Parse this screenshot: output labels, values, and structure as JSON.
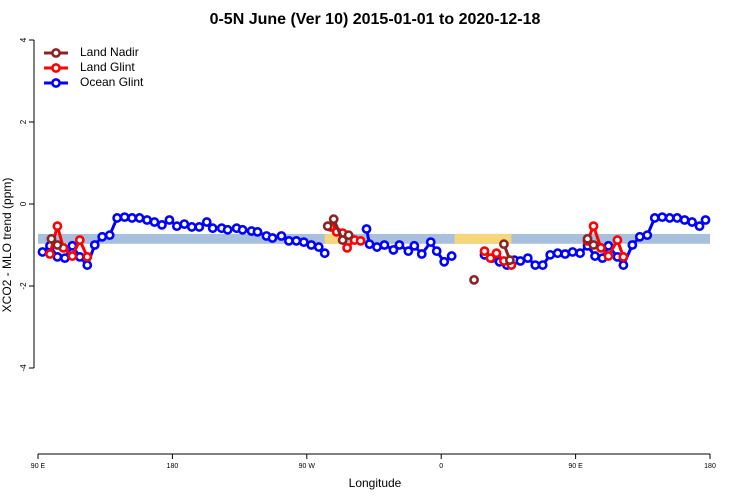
{
  "chart_data": {
    "type": "line",
    "title": "0-5N June (Ver 10)   2015-01-01 to 2020-12-18",
    "xlabel": "Longitude",
    "ylabel": "XCO2 - MLO trend (ppm)",
    "xlim": [
      90,
      540
    ],
    "ylim": [
      -6,
      4
    ],
    "xticks": [
      {
        "value": 90,
        "label": "90 E"
      },
      {
        "value": 180,
        "label": "180"
      },
      {
        "value": 270,
        "label": "90 W"
      },
      {
        "value": 360,
        "label": "0"
      },
      {
        "value": 450,
        "label": "90 E"
      },
      {
        "value": 540,
        "label": "180"
      }
    ],
    "yticks": [
      -4,
      -2,
      0,
      2,
      4
    ],
    "legend": "top-left",
    "bands": [
      {
        "x": [
          90,
          540
        ],
        "y": [
          -0.97,
          -0.73
        ],
        "color": "#a8bfdd"
      },
      {
        "x": [
          282,
          295
        ],
        "y": [
          -0.97,
          -0.73
        ],
        "color": "#f5d67a"
      },
      {
        "x": [
          369,
          407
        ],
        "y": [
          -0.97,
          -0.73
        ],
        "color": "#f5d67a"
      }
    ],
    "series": [
      {
        "name": "Land Nadir",
        "color": "#8b2323",
        "x": [
          99,
          103,
          200,
          284,
          288,
          294,
          298,
          340,
          382,
          390,
          402,
          406,
          430,
          458,
          462
        ],
        "values": [
          -0.85,
          -1.0,
          null,
          -0.54,
          -0.37,
          -0.88,
          -0.76,
          null,
          -1.85,
          null,
          -0.98,
          -1.37,
          null,
          -0.85,
          -1.0
        ]
      },
      {
        "name": "Land Glint",
        "color": "#ff0000",
        "x": [
          98,
          103,
          107,
          113,
          118,
          123,
          200,
          286,
          290,
          294,
          297,
          302,
          306,
          350,
          389,
          393,
          397,
          402,
          407,
          430,
          458,
          462,
          467,
          472,
          478,
          482
        ],
        "values": [
          -1.22,
          -0.54,
          -1.07,
          -1.27,
          -0.88,
          -1.29,
          null,
          -0.56,
          -0.68,
          -0.71,
          -1.07,
          -0.88,
          -0.9,
          null,
          -1.15,
          -1.32,
          -1.2,
          -1.39,
          -1.49,
          null,
          -0.9,
          -0.54,
          -1.07,
          -1.27,
          -0.88,
          -1.29
        ]
      },
      {
        "name": "Ocean Glint",
        "color": "#0000ff",
        "x": [
          93,
          98,
          103,
          108,
          113,
          118,
          123,
          128,
          133,
          138,
          143,
          148,
          153,
          158,
          163,
          168,
          173,
          178,
          183,
          188,
          193,
          198,
          203,
          207,
          213,
          217,
          223,
          227,
          233,
          237,
          243,
          247,
          253,
          258,
          263,
          268,
          273,
          278,
          282,
          296,
          310,
          312,
          317,
          322,
          328,
          332,
          338,
          342,
          347,
          353,
          357,
          362,
          367,
          378,
          389,
          394,
          399,
          404,
          409,
          413,
          418,
          423,
          428,
          433,
          438,
          443,
          448,
          453,
          458,
          463,
          468,
          472,
          478,
          482,
          488,
          493,
          498,
          503,
          508,
          513,
          518,
          523,
          528,
          533,
          537
        ],
        "values": [
          -1.17,
          -1.02,
          -1.29,
          -1.32,
          -1.02,
          -1.29,
          -1.49,
          -1.0,
          -0.8,
          -0.76,
          -0.34,
          -0.32,
          -0.34,
          -0.34,
          -0.39,
          -0.44,
          -0.51,
          -0.39,
          -0.54,
          -0.49,
          -0.56,
          -0.56,
          -0.44,
          -0.59,
          -0.59,
          -0.63,
          -0.59,
          -0.63,
          -0.66,
          -0.68,
          -0.78,
          -0.83,
          -0.78,
          -0.9,
          -0.9,
          -0.93,
          -1.0,
          -1.05,
          -1.2,
          null,
          -0.61,
          -0.98,
          -1.05,
          -1.0,
          -1.12,
          -1.0,
          -1.15,
          -1.02,
          -1.22,
          -0.93,
          -1.15,
          -1.41,
          -1.27,
          null,
          -1.24,
          -1.32,
          -1.41,
          -1.49,
          -1.37,
          -1.39,
          -1.32,
          -1.49,
          -1.49,
          -1.24,
          -1.2,
          -1.22,
          -1.17,
          -1.2,
          -1.02,
          -1.27,
          -1.32,
          -1.02,
          -1.29,
          -1.49,
          -1.0,
          -0.8,
          -0.76,
          -0.34,
          -0.32,
          -0.34,
          -0.34,
          -0.39,
          -0.44,
          -0.54,
          -0.39
        ]
      }
    ]
  }
}
